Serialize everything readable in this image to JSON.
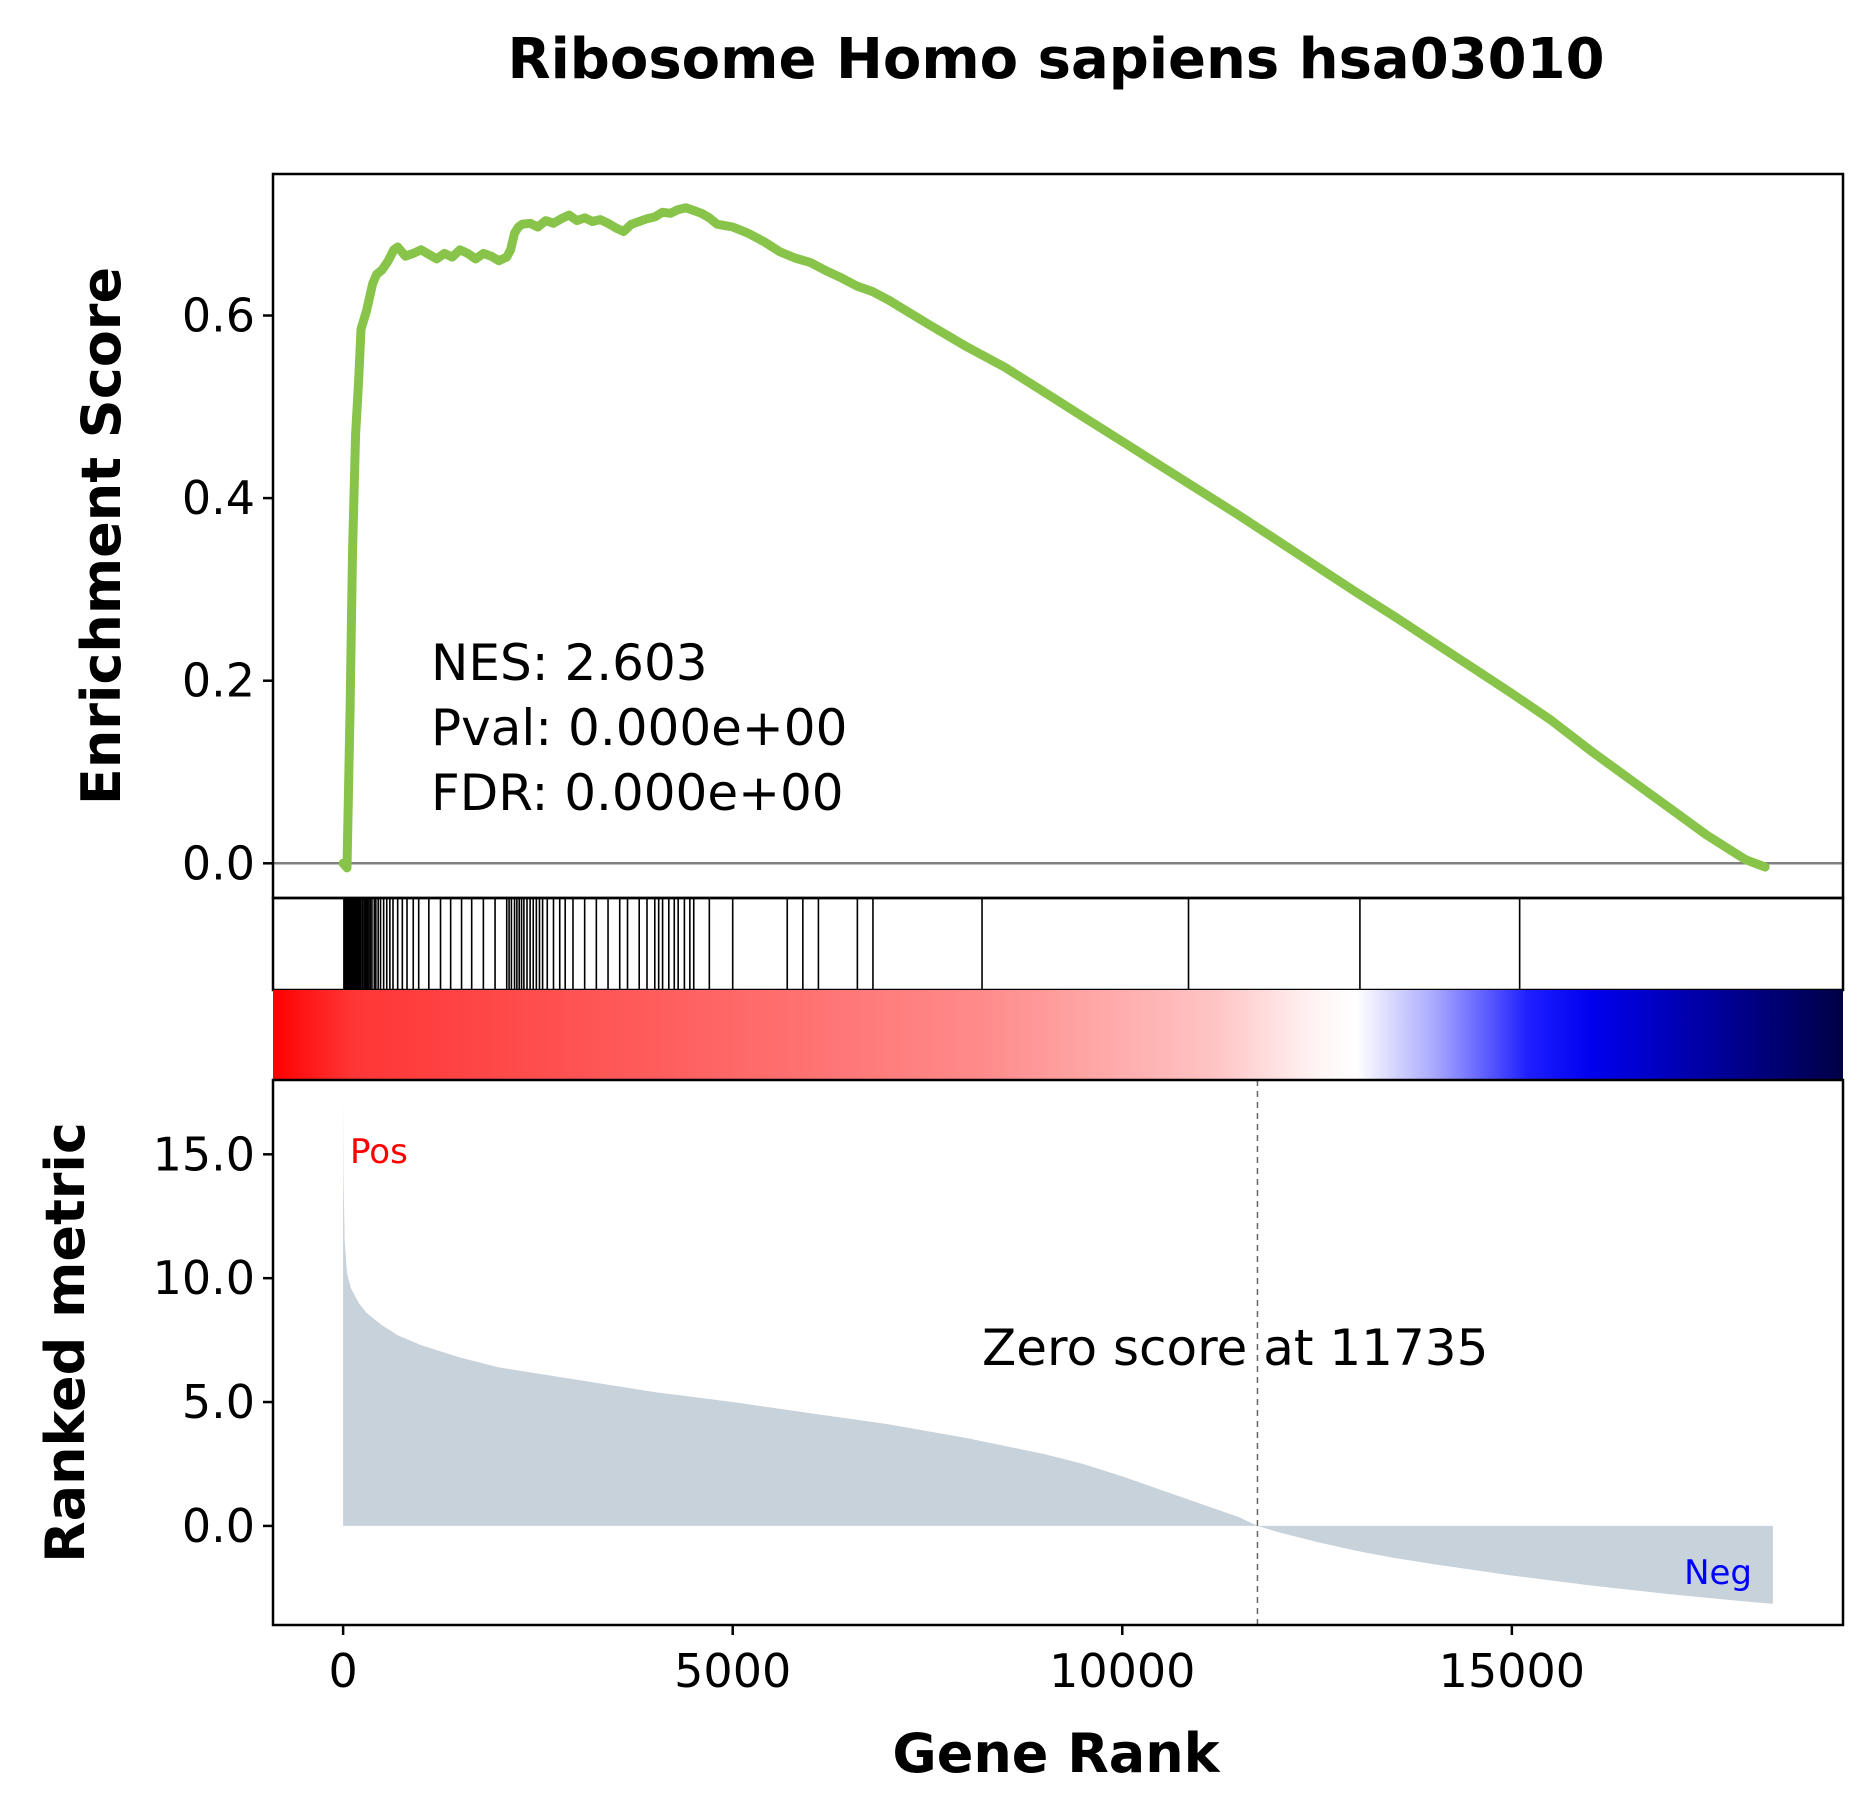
{
  "title": "Ribosome Homo sapiens hsa03010",
  "colors": {
    "es_line": "#88c44a",
    "zero_line": "#808080",
    "metric_fill": "#c8d2da",
    "pos": "#ff0000",
    "neg": "#0000ff",
    "axis": "#000000"
  },
  "stats": {
    "nes": "NES: 2.603",
    "pval": "Pval: 0.000e+00",
    "fdr": "FDR: 0.000e+00"
  },
  "labels": {
    "pos": "Pos",
    "neg": "Neg",
    "zero_score": "Zero score at 11735"
  },
  "chart_data": [
    {
      "type": "line",
      "panel": "enrichment",
      "ylabel": "Enrichment Score",
      "xlim": [
        -900,
        19250
      ],
      "ylim": [
        -0.038,
        0.755
      ],
      "yticks": [
        0.0,
        0.2,
        0.4,
        0.6
      ],
      "ytick_labels": [
        "0.0",
        "0.2",
        "0.4",
        "0.6"
      ],
      "series": [
        {
          "x": [
            0,
            50,
            90,
            120,
            160,
            200,
            230,
            300,
            380,
            430,
            500,
            580,
            650,
            700,
            800,
            900,
            1000,
            1100,
            1200,
            1300,
            1400,
            1500,
            1600,
            1700,
            1800,
            1900,
            2000,
            2100,
            2150,
            2200,
            2250,
            2300,
            2400,
            2500,
            2600,
            2700,
            2800,
            2900,
            3000,
            3100,
            3200,
            3300,
            3400,
            3500,
            3600,
            3700,
            3800,
            3900,
            4000,
            4100,
            4200,
            4300,
            4400,
            4500,
            4600,
            4700,
            4800,
            5000,
            5200,
            5400,
            5600,
            5800,
            6000,
            6200,
            6400,
            6600,
            6800,
            7000,
            7500,
            8000,
            8500,
            9000,
            9500,
            10000,
            10500,
            11000,
            11500,
            12000,
            12500,
            13000,
            13500,
            14000,
            14500,
            15000,
            15500,
            16000,
            16500,
            17000,
            17500,
            18000,
            18250
          ],
          "y": [
            0.0,
            -0.005,
            0.17,
            0.34,
            0.47,
            0.53,
            0.585,
            0.605,
            0.635,
            0.645,
            0.65,
            0.66,
            0.672,
            0.675,
            0.665,
            0.668,
            0.672,
            0.667,
            0.662,
            0.668,
            0.664,
            0.672,
            0.668,
            0.662,
            0.668,
            0.665,
            0.66,
            0.664,
            0.672,
            0.69,
            0.697,
            0.7,
            0.701,
            0.697,
            0.704,
            0.701,
            0.706,
            0.71,
            0.704,
            0.707,
            0.703,
            0.705,
            0.701,
            0.696,
            0.692,
            0.7,
            0.703,
            0.706,
            0.708,
            0.713,
            0.712,
            0.716,
            0.718,
            0.715,
            0.712,
            0.707,
            0.7,
            0.697,
            0.69,
            0.681,
            0.67,
            0.663,
            0.658,
            0.649,
            0.641,
            0.632,
            0.626,
            0.617,
            0.591,
            0.566,
            0.543,
            0.516,
            0.489,
            0.462,
            0.435,
            0.408,
            0.381,
            0.353,
            0.325,
            0.297,
            0.27,
            0.242,
            0.214,
            0.186,
            0.157,
            0.124,
            0.093,
            0.062,
            0.031,
            0.004,
            -0.004
          ]
        }
      ]
    },
    {
      "type": "barcode",
      "panel": "hits",
      "hits": [
        10,
        20,
        30,
        40,
        50,
        60,
        70,
        80,
        90,
        100,
        110,
        120,
        130,
        140,
        150,
        160,
        170,
        180,
        190,
        200,
        215,
        230,
        250,
        270,
        290,
        310,
        330,
        350,
        370,
        400,
        420,
        450,
        480,
        520,
        560,
        600,
        640,
        700,
        760,
        820,
        900,
        970,
        1100,
        1250,
        1380,
        1520,
        1650,
        1800,
        1950,
        2100,
        2130,
        2160,
        2200,
        2230,
        2260,
        2290,
        2320,
        2360,
        2400,
        2440,
        2480,
        2520,
        2560,
        2620,
        2700,
        2780,
        2850,
        2950,
        3100,
        3250,
        3400,
        3550,
        3650,
        3800,
        3900,
        4000,
        4050,
        4100,
        4180,
        4250,
        4300,
        4380,
        4450,
        4500,
        4700,
        5000,
        5700,
        5900,
        6100,
        6600,
        6800,
        8200,
        10850,
        13050,
        15100
      ]
    },
    {
      "type": "heatmap",
      "panel": "rank-colorbar",
      "gradient": [
        {
          "offset": 0.0,
          "color": "#ff0000"
        },
        {
          "offset": 0.05,
          "color": "#ff3535"
        },
        {
          "offset": 0.25,
          "color": "#ff5e5e"
        },
        {
          "offset": 0.45,
          "color": "#ff8a8a"
        },
        {
          "offset": 0.6,
          "color": "#ffc4c4"
        },
        {
          "offset": 0.665,
          "color": "#fff4f4"
        },
        {
          "offset": 0.69,
          "color": "#ffffff"
        },
        {
          "offset": 0.74,
          "color": "#a8a8ff"
        },
        {
          "offset": 0.8,
          "color": "#1e1eff"
        },
        {
          "offset": 0.84,
          "color": "#0000ee"
        },
        {
          "offset": 0.92,
          "color": "#00009a"
        },
        {
          "offset": 1.0,
          "color": "#000045"
        }
      ]
    },
    {
      "type": "area",
      "panel": "ranked-metric",
      "xlabel": "Gene Rank",
      "ylabel": "Ranked metric",
      "xlim": [
        -900,
        19250
      ],
      "ylim": [
        -4.0,
        18.0
      ],
      "xticks": [
        0,
        5000,
        10000,
        15000
      ],
      "xtick_labels": [
        "0",
        "5000",
        "10000",
        "15000"
      ],
      "yticks": [
        0,
        5,
        10,
        15
      ],
      "ytick_labels": [
        "0.0",
        "5.0",
        "10.0",
        "15.0"
      ],
      "zero_cross": 11735,
      "x": [
        0,
        5,
        20,
        50,
        100,
        200,
        300,
        500,
        700,
        1000,
        1500,
        2000,
        3000,
        4000,
        5000,
        6000,
        7000,
        8000,
        9000,
        9500,
        10000,
        10500,
        11000,
        11500,
        11735,
        12000,
        12500,
        13000,
        13500,
        14000,
        15000,
        16000,
        17000,
        17500,
        18000,
        18350
      ],
      "values": [
        17.3,
        14.0,
        11.5,
        10.2,
        9.6,
        9.0,
        8.6,
        8.1,
        7.7,
        7.3,
        6.8,
        6.4,
        5.9,
        5.4,
        5.0,
        4.55,
        4.1,
        3.55,
        2.9,
        2.5,
        2.0,
        1.45,
        0.9,
        0.35,
        0.0,
        -0.25,
        -0.65,
        -1.0,
        -1.3,
        -1.55,
        -2.0,
        -2.4,
        -2.75,
        -2.9,
        -3.05,
        -3.15
      ]
    }
  ]
}
